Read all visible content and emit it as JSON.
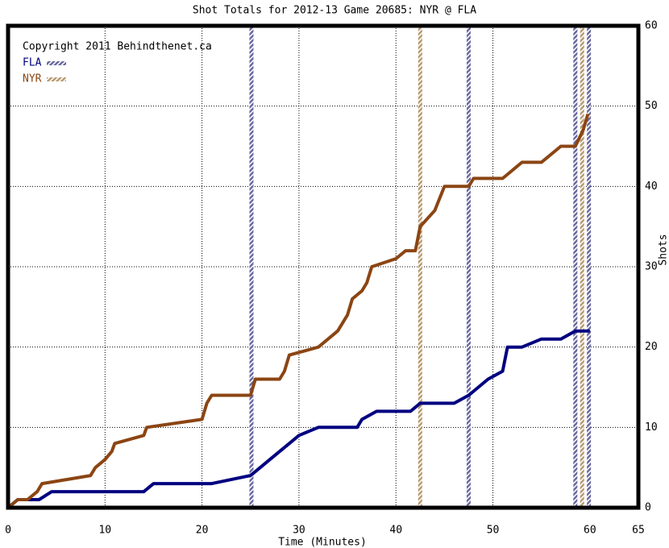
{
  "chart_data": {
    "type": "line",
    "title": "Shot Totals for 2012-13 Game 20685: NYR @ FLA",
    "annotation": "Copyright 2011 Behindthenet.ca",
    "x_label": "Time (Minutes)",
    "y_label": "Shots",
    "xlim": [
      0,
      65
    ],
    "ylim": [
      0,
      60
    ],
    "xticks": [
      0,
      10,
      20,
      30,
      40,
      50,
      60,
      65
    ],
    "yticks": [
      0,
      10,
      20,
      30,
      40,
      50,
      60
    ],
    "grid": true,
    "series": [
      {
        "name": "FLA",
        "color": "#000080",
        "goal_color": "#6a6aa0",
        "x": [
          0,
          1,
          3.2,
          4.5,
          14,
          15,
          21,
          25,
          26,
          27,
          28,
          29,
          30,
          32,
          36,
          36.5,
          38,
          41.5,
          42.5,
          46,
          47.5,
          48.5,
          49.5,
          51,
          51.5,
          53,
          55,
          57,
          58.5,
          60
        ],
        "values": [
          0,
          1,
          1,
          2,
          2,
          3,
          3,
          4,
          5,
          6,
          7,
          8,
          9,
          10,
          10,
          11,
          12,
          12,
          13,
          13,
          14,
          15,
          16,
          17,
          20,
          20,
          21,
          21,
          22,
          22
        ],
        "goals": [
          25.1,
          47.5,
          58.5,
          59.9
        ]
      },
      {
        "name": "NYR",
        "color": "#8b4513",
        "goal_color": "#b89a70",
        "x": [
          0,
          1,
          2,
          3,
          3.5,
          8.5,
          9,
          10,
          10.7,
          11,
          14,
          14.3,
          20,
          20.5,
          21,
          25,
          25.5,
          28,
          28.5,
          29,
          32,
          34,
          35,
          35.5,
          36.5,
          37,
          37.5,
          40,
          41,
          42,
          42.5,
          44,
          45,
          47.5,
          48,
          51,
          53,
          55,
          57,
          58.5,
          59.3,
          59.8
        ],
        "values": [
          0,
          1,
          1,
          2,
          3,
          4,
          5,
          6,
          7,
          8,
          9,
          10,
          11,
          13,
          14,
          14,
          16,
          16,
          17,
          19,
          20,
          22,
          24,
          26,
          27,
          28,
          30,
          31,
          32,
          32,
          35,
          37,
          40,
          40,
          41,
          41,
          43,
          43,
          45,
          45,
          47,
          49
        ],
        "goals": [
          42.5,
          59.2
        ]
      }
    ]
  }
}
